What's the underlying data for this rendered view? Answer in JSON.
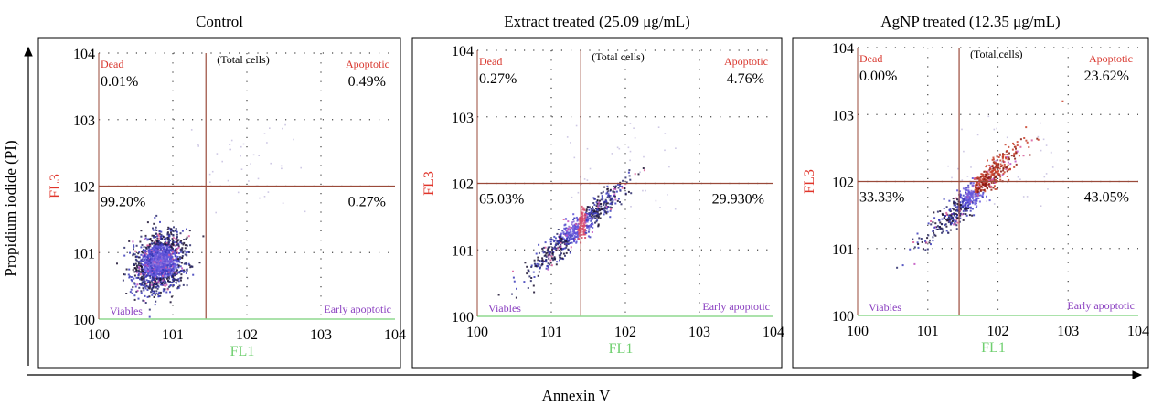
{
  "figure": {
    "x_axis_label": "Annexin V",
    "y_axis_label": "Propidium iodide (PI)"
  },
  "colors": {
    "quadrant_label": "#d9382f",
    "quadrant_line": "#9a4a3a",
    "xaxis_line": "#8fd98f",
    "fl1_label": "#6fcf6f",
    "fl3_label": "#e0352b",
    "bottom_label": "#8a3fc0",
    "grid_dots": "#444444"
  },
  "chart_data": [
    {
      "type": "scatter",
      "title": "Control",
      "xlabel": "FL1",
      "ylabel": "FL3",
      "x_scale": "log",
      "y_scale": "log",
      "xlim": [
        1,
        10000
      ],
      "ylim": [
        1,
        10000
      ],
      "x_ticks": [
        "100",
        "101",
        "102",
        "103",
        "104"
      ],
      "y_ticks": [
        "100",
        "101",
        "102",
        "103",
        "104"
      ],
      "grid": "dotted",
      "gate_lines": {
        "x": 28,
        "y": 100
      },
      "quadrant_names": {
        "top_left": "Dead",
        "top_center": "(Total cells)",
        "top_right": "Apoptotic",
        "bottom_left": "Viables",
        "bottom_right": "Early apoptotic"
      },
      "quadrant_percentages": {
        "top_left": "0.01%",
        "top_right": "0.49%",
        "bottom_left": "99.20%",
        "bottom_right": "0.27%"
      },
      "population_center": [
        6.5,
        7.5
      ]
    },
    {
      "type": "scatter",
      "title": "Extract treated (25.09 μg/mL)",
      "xlabel": "FL1",
      "ylabel": "FL3",
      "x_scale": "log",
      "y_scale": "log",
      "xlim": [
        1,
        10000
      ],
      "ylim": [
        1,
        10000
      ],
      "x_ticks": [
        "100",
        "101",
        "102",
        "103",
        "104"
      ],
      "y_ticks": [
        "100",
        "101",
        "102",
        "103",
        "104"
      ],
      "grid": "dotted",
      "gate_lines": {
        "x": 25,
        "y": 100
      },
      "quadrant_names": {
        "top_left": "Dead",
        "top_center": "(Total cells)",
        "top_right": "Apoptotic",
        "bottom_left": "Viables",
        "bottom_right": "Early apoptotic"
      },
      "quadrant_percentages": {
        "top_left": "0.27%",
        "top_right": "4.76%",
        "bottom_left": "65.03%",
        "bottom_right": "29.930%"
      },
      "population_center": [
        22,
        22
      ]
    },
    {
      "type": "scatter",
      "title": "AgNP treated (12.35 μg/mL)",
      "xlabel": "FL1",
      "ylabel": "FL3",
      "x_scale": "log",
      "y_scale": "log",
      "xlim": [
        1,
        10000
      ],
      "ylim": [
        1,
        10000
      ],
      "x_ticks": [
        "100",
        "101",
        "102",
        "103",
        "104"
      ],
      "y_ticks": [
        "100",
        "101",
        "102",
        "103",
        "104"
      ],
      "grid": "dotted",
      "gate_lines": {
        "x": 28,
        "y": 100
      },
      "quadrant_names": {
        "top_left": "Dead",
        "top_center": "(Total cells)",
        "top_right": "Apoptotic",
        "bottom_left": "Viables",
        "bottom_right": "Early apoptotic"
      },
      "quadrant_percentages": {
        "top_left": "0.00%",
        "top_right": "23.62%",
        "bottom_left": "33.33%",
        "bottom_right": "43.05%"
      },
      "population_center": [
        45,
        70
      ]
    }
  ]
}
